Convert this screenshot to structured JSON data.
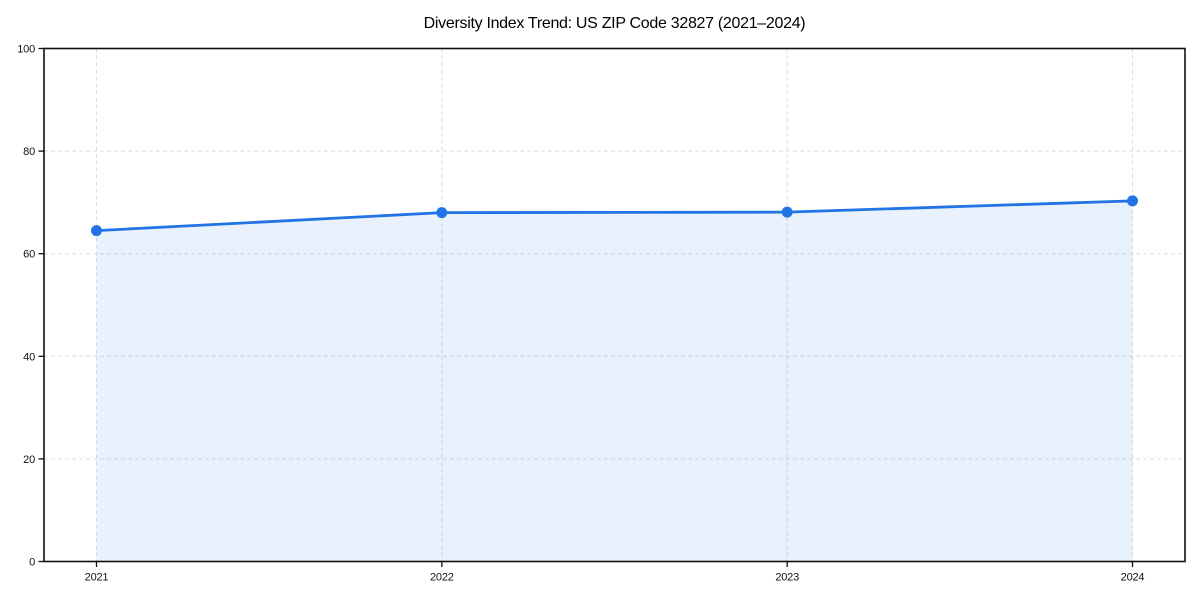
{
  "chart_data": {
    "type": "area",
    "title": "Diversity Index Trend: US ZIP Code 32827 (2021–2024)",
    "categories": [
      "2021",
      "2022",
      "2023",
      "2024"
    ],
    "series": [
      {
        "name": "Diversity Index",
        "values": [
          64.5,
          68.0,
          68.1,
          70.3
        ]
      }
    ],
    "xlabel": "",
    "ylabel": "",
    "ylim": [
      0,
      100
    ],
    "yticks": [
      0,
      20,
      40,
      60,
      80,
      100
    ],
    "grid": "dashed, horizontal and vertical",
    "legend": "none",
    "marker": "circle",
    "colors": {
      "line": "#2273e3",
      "marker": "#2273e3",
      "fill": "rgba(34,115,227,0.10)",
      "grid": "#dddddd",
      "spine": "#111111",
      "tick_text": "#111111",
      "background": "#ffffff"
    }
  }
}
